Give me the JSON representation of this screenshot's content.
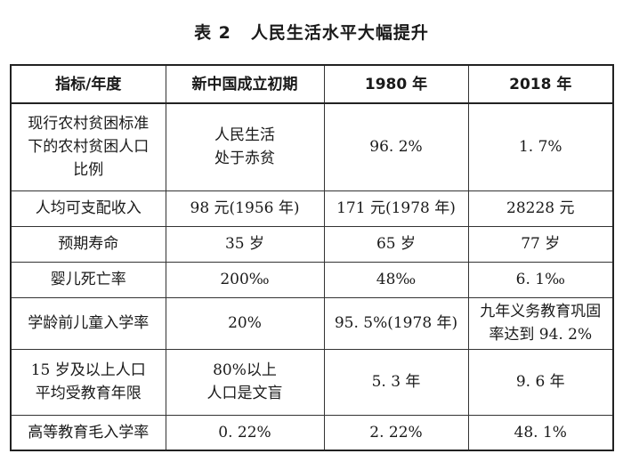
{
  "caption": {
    "number": "表 2",
    "title": "人民生活水平大幅提升"
  },
  "table": {
    "headers": [
      "指标/年度",
      "新中国成立初期",
      "1980 年",
      "2018 年"
    ],
    "rows": [
      {
        "indicator": [
          "现行农村贫困标准",
          "下的农村贫困人口",
          "比例"
        ],
        "early": [
          "人民生活",
          "处于赤贫"
        ],
        "y1980": [
          "96. 2%"
        ],
        "y2018": [
          "1. 7%"
        ]
      },
      {
        "indicator": [
          "人均可支配收入"
        ],
        "early": [
          "98 元(1956 年)"
        ],
        "y1980": [
          "171 元(1978 年)"
        ],
        "y2018": [
          "28228 元"
        ]
      },
      {
        "indicator": [
          "预期寿命"
        ],
        "early": [
          "35 岁"
        ],
        "y1980": [
          "65 岁"
        ],
        "y2018": [
          "77 岁"
        ]
      },
      {
        "indicator": [
          "婴儿死亡率"
        ],
        "early": [
          "200‰"
        ],
        "y1980": [
          "48‰"
        ],
        "y2018": [
          "6. 1‰"
        ]
      },
      {
        "indicator": [
          "学龄前儿童入学率"
        ],
        "early": [
          "20%"
        ],
        "y1980": [
          "95. 5%(1978 年)"
        ],
        "y2018": [
          "九年义务教育巩固",
          "率达到 94. 2%"
        ]
      },
      {
        "indicator": [
          "15 岁及以上人口",
          "平均受教育年限"
        ],
        "early": [
          "80%以上",
          "人口是文盲"
        ],
        "y1980": [
          "5. 3 年"
        ],
        "y2018": [
          "9. 6 年"
        ]
      },
      {
        "indicator": [
          "高等教育毛入学率"
        ],
        "early": [
          "0. 22%"
        ],
        "y1980": [
          "2. 22%"
        ],
        "y2018": [
          "48. 1%"
        ]
      }
    ]
  }
}
